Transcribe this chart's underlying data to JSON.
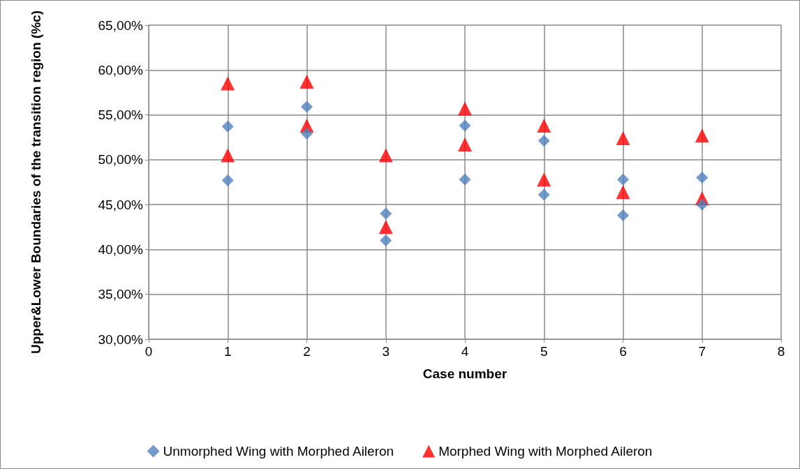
{
  "chart_data": {
    "type": "scatter",
    "xlabel": "Case number",
    "ylabel": "Upper&Lower Boundaries of the transition region (%c)",
    "xlim": [
      0,
      8
    ],
    "xticks": [
      0,
      1,
      2,
      3,
      4,
      5,
      6,
      7,
      8
    ],
    "ylim": [
      30,
      65
    ],
    "yticks": [
      {
        "value": 30,
        "label": "30,00%"
      },
      {
        "value": 35,
        "label": "35,00%"
      },
      {
        "value": 40,
        "label": "40,00%"
      },
      {
        "value": 45,
        "label": "45,00%"
      },
      {
        "value": 50,
        "label": "50,00%"
      },
      {
        "value": 55,
        "label": "55,00%"
      },
      {
        "value": 60,
        "label": "60,00%"
      },
      {
        "value": 65,
        "label": "65,00%"
      }
    ],
    "grid": true,
    "legend": "bottom",
    "series": [
      {
        "name": "Unmorphed Wing with Morphed Aileron",
        "color": "#4f81bd",
        "marker": "diamond",
        "x": [
          1,
          1,
          2,
          2,
          3,
          3,
          4,
          4,
          5,
          5,
          6,
          6,
          7,
          7
        ],
        "values": [
          53.7,
          47.7,
          55.9,
          52.9,
          44.0,
          41.0,
          53.8,
          47.8,
          52.1,
          46.1,
          47.8,
          43.8,
          48.0,
          45.0
        ]
      },
      {
        "name": "Morphed Wing with Morphed Aileron",
        "color": "#ff0000",
        "marker": "triangle",
        "x": [
          1,
          1,
          2,
          2,
          3,
          3,
          4,
          4,
          5,
          5,
          6,
          6,
          7,
          7
        ],
        "values": [
          58.5,
          50.5,
          58.7,
          53.8,
          50.5,
          42.5,
          55.7,
          51.7,
          53.8,
          47.8,
          52.4,
          46.4,
          52.7,
          45.7
        ]
      }
    ]
  }
}
